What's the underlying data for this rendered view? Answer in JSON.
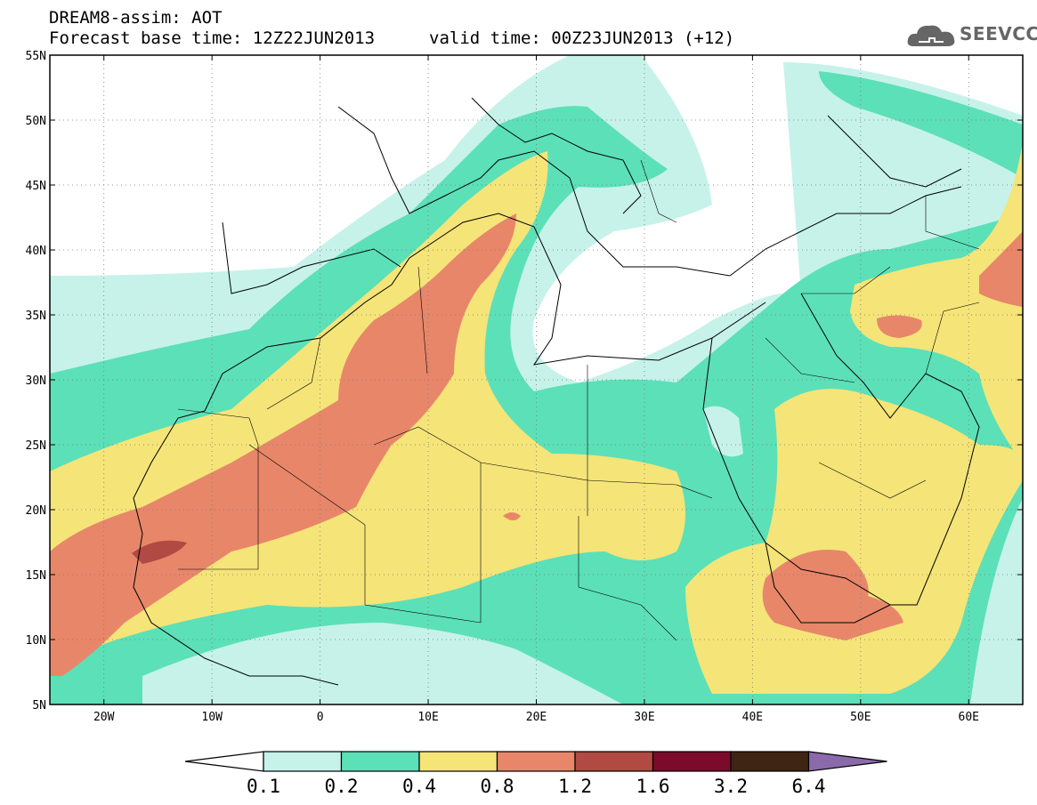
{
  "header": {
    "model": "DREAM8-assim: AOT",
    "base_time": "Forecast base time: 12Z22JUN2013",
    "valid_time": "valid time: 00Z23JUN2013 (+12)"
  },
  "logo": {
    "text": "SEEVCCC",
    "icon": "cloud-logo-icon"
  },
  "axes": {
    "lat_labels": [
      "55N",
      "50N",
      "45N",
      "40N",
      "35N",
      "30N",
      "25N",
      "20N",
      "15N",
      "10N",
      "5N"
    ],
    "lon_labels": [
      "20W",
      "10W",
      "0",
      "10E",
      "20E",
      "30E",
      "40E",
      "50E",
      "60E"
    ],
    "lat_values": [
      55,
      50,
      45,
      40,
      35,
      30,
      25,
      20,
      15,
      10,
      5
    ],
    "lon_values": [
      -20,
      -10,
      0,
      10,
      20,
      30,
      40,
      50,
      60
    ],
    "lon_range": [
      -25,
      65
    ],
    "lat_range": [
      5,
      55
    ],
    "grid": "dotted"
  },
  "colorbar": {
    "labels": [
      "0.1",
      "0.2",
      "0.4",
      "0.8",
      "1.2",
      "1.6",
      "3.2",
      "6.4"
    ],
    "colors": [
      "#ffffff",
      "#c6f2ea",
      "#5ce0b8",
      "#f5e478",
      "#e8866a",
      "#b04a42",
      "#7c0a2a",
      "#3f2514",
      "#8a6aaa"
    ]
  }
}
